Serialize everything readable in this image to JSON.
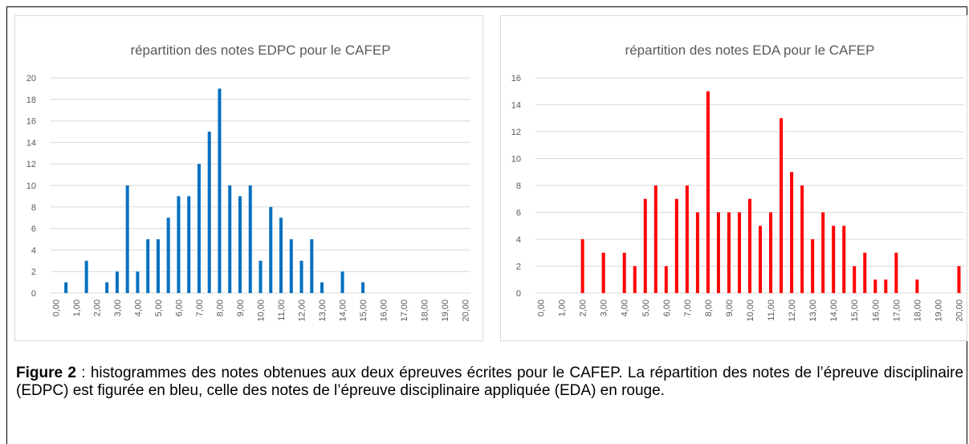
{
  "chart_data": [
    {
      "type": "bar",
      "title": "répartition des notes EDPC pour le CAFEP",
      "color": "#0070c0",
      "grid": true,
      "categories": [
        "0,00",
        null,
        "1,00",
        null,
        "2,00",
        null,
        "3,00",
        null,
        "4,00",
        null,
        "5,00",
        null,
        "6,00",
        null,
        "7,00",
        null,
        "8,00",
        null,
        "9,00",
        null,
        "10,00",
        null,
        "11,00",
        null,
        "12,00",
        null,
        "13,00",
        null,
        "14,00",
        null,
        "15,00",
        null,
        "16,00",
        null,
        "17,00",
        null,
        "18,00",
        null,
        "19,00",
        null,
        "20,00"
      ],
      "values": [
        0,
        1,
        0,
        3,
        0,
        1,
        2,
        10,
        2,
        5,
        5,
        7,
        9,
        9,
        12,
        15,
        19,
        10,
        9,
        10,
        3,
        8,
        7,
        5,
        3,
        5,
        1,
        0,
        2,
        0,
        1,
        0,
        0,
        0,
        0,
        0,
        0,
        0,
        0,
        0,
        0
      ],
      "ylim": [
        0,
        20
      ],
      "yticks": [
        0,
        2,
        4,
        6,
        8,
        10,
        12,
        14,
        16,
        18,
        20
      ]
    },
    {
      "type": "bar",
      "title": "répartition des notes EDA pour le CAFEP",
      "color": "#ff0000",
      "grid": true,
      "categories": [
        "0,00",
        null,
        "1,00",
        null,
        "2,00",
        null,
        "3,00",
        null,
        "4,00",
        null,
        "5,00",
        null,
        "6,00",
        null,
        "7,00",
        null,
        "8,00",
        null,
        "9,00",
        null,
        "10,00",
        null,
        "11,00",
        null,
        "12,00",
        null,
        "13,00",
        null,
        "14,00",
        null,
        "15,00",
        null,
        "16,00",
        null,
        "17,00",
        null,
        "18,00",
        null,
        "19,00",
        null,
        "20,00"
      ],
      "values": [
        0,
        0,
        0,
        0,
        4,
        0,
        3,
        0,
        3,
        2,
        7,
        8,
        2,
        7,
        8,
        6,
        15,
        6,
        6,
        6,
        7,
        5,
        6,
        13,
        9,
        8,
        4,
        6,
        5,
        5,
        2,
        3,
        1,
        1,
        3,
        0,
        1,
        0,
        0,
        0,
        2
      ],
      "ylim": [
        0,
        16
      ],
      "yticks": [
        0,
        2,
        4,
        6,
        8,
        10,
        12,
        14,
        16
      ]
    }
  ],
  "caption": {
    "label": "Figure 2",
    "text": " : histogrammes des notes obtenues aux deux épreuves écrites pour le CAFEP. La répartition des notes de l’épreuve disciplinaire (EDPC) est figurée en bleu, celle des notes de l’épreuve disciplinaire appliquée (EDA) en rouge."
  }
}
